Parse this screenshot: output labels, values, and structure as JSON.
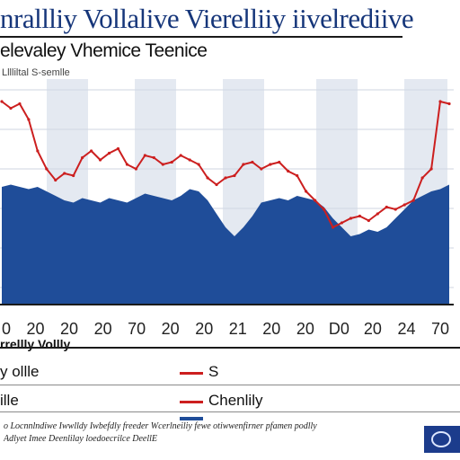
{
  "header": {
    "title": "nrallliy Vollalive Vierelliiy iivelrediive",
    "subtitle": "elevaley Vhemice Teenice",
    "caption": "Lllliltal S-semlle"
  },
  "axis": {
    "x_ticks": [
      "0",
      "20",
      "20",
      "20",
      "70",
      "20",
      "20",
      "21",
      "20",
      "20",
      "D0",
      "20",
      "24",
      "70"
    ],
    "x_title": "rrellly Vollly"
  },
  "legend": {
    "rows": [
      {
        "left": "y ollle",
        "label": "S",
        "color": "#cc1f1f"
      },
      {
        "left": "ille",
        "label": "Chenlily",
        "color": "#cc1f1f"
      },
      {
        "left": "",
        "label": "",
        "color": "#1f4d99"
      }
    ]
  },
  "footer": {
    "line1": "o Locnnlndiwe Iwwlldy Iwbefdly freeder Wcerlneiliy fewe otiwwenfirner pfamen podlly",
    "line2": "Adlyet Imee Deenlilay loedoecrilce DeellE"
  },
  "colors": {
    "area": "#1f4d99",
    "line": "#cc1f1f",
    "band": "#e4e9f1"
  },
  "chart_data": {
    "type": "area",
    "ylim": [
      0,
      100
    ],
    "categories": [
      "0",
      "20",
      "20",
      "20",
      "70",
      "20",
      "20",
      "21",
      "20",
      "20",
      "D0",
      "20",
      "24",
      "70"
    ],
    "series": [
      {
        "kind": "area",
        "x": [
          0,
          2,
          4,
          6,
          8,
          10,
          12,
          14,
          16,
          18,
          20,
          22,
          24,
          26,
          28,
          30,
          32,
          34,
          36,
          38,
          40,
          42,
          44,
          46,
          48,
          50,
          52,
          54,
          56,
          58,
          60,
          62,
          64,
          66,
          68,
          70,
          72,
          74,
          76,
          78,
          80,
          82,
          84,
          86,
          88,
          90,
          92,
          94,
          96,
          98,
          100
        ],
        "values": [
          52,
          53,
          52,
          51,
          52,
          50,
          48,
          46,
          45,
          47,
          46,
          45,
          47,
          46,
          45,
          47,
          49,
          48,
          47,
          46,
          48,
          51,
          50,
          46,
          40,
          34,
          30,
          34,
          39,
          45,
          46,
          47,
          46,
          48,
          47,
          46,
          43,
          38,
          34,
          30,
          31,
          33,
          32,
          34,
          38,
          42,
          46,
          48,
          50,
          51,
          53
        ]
      },
      {
        "kind": "line",
        "x": [
          0,
          2,
          4,
          6,
          8,
          10,
          12,
          14,
          16,
          18,
          20,
          22,
          24,
          26,
          28,
          30,
          32,
          34,
          36,
          38,
          40,
          42,
          44,
          46,
          48,
          50,
          52,
          54,
          56,
          58,
          60,
          62,
          64,
          66,
          68,
          70,
          72,
          74,
          76,
          78,
          80,
          82,
          84,
          86,
          88,
          90,
          92,
          94,
          96,
          98,
          100
        ],
        "values": [
          90,
          87,
          89,
          82,
          68,
          60,
          55,
          58,
          57,
          65,
          68,
          64,
          67,
          69,
          62,
          60,
          66,
          65,
          62,
          63,
          66,
          64,
          62,
          56,
          53,
          56,
          57,
          62,
          63,
          60,
          62,
          63,
          59,
          57,
          50,
          46,
          42,
          34,
          36,
          38,
          39,
          37,
          40,
          43,
          42,
          44,
          46,
          56,
          60,
          90,
          89
        ]
      }
    ]
  }
}
